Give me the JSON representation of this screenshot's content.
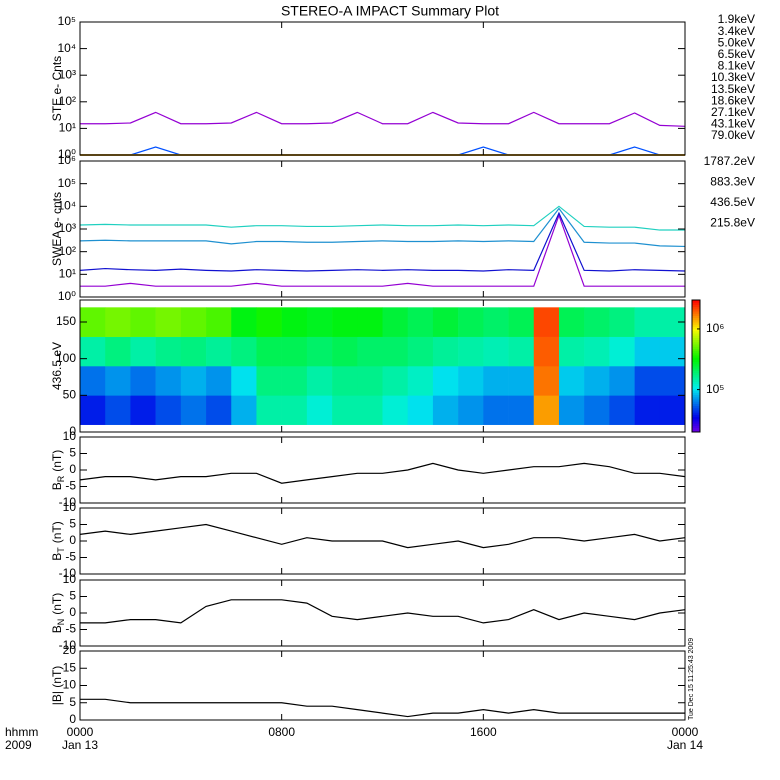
{
  "figure": {
    "title": "STEREO-A IMPACT Summary Plot",
    "xlim": [
      0,
      24
    ],
    "xticks": [
      {
        "value": 0,
        "label": "0000"
      },
      {
        "value": 8,
        "label": "0800"
      },
      {
        "value": 16,
        "label": "1600"
      },
      {
        "value": 24,
        "label": "0000"
      }
    ],
    "date_labels": [
      {
        "value": 0,
        "label": "Jan 13"
      },
      {
        "value": 24,
        "label": "Jan 14"
      }
    ],
    "x_label_time": "hhmm",
    "x_label_year": "2009",
    "timestamp": "Tue Dec 15 11:25:43 2009"
  },
  "chart_data": [
    {
      "type": "line",
      "ylabel": "STE e- Cnts",
      "log": true,
      "legend": "right",
      "ylim": [
        1,
        100000
      ],
      "yticks": [
        {
          "value": 1,
          "label": "10⁰"
        },
        {
          "value": 10,
          "label": "10¹"
        },
        {
          "value": 100,
          "label": "10²"
        },
        {
          "value": 1000,
          "label": "10³"
        },
        {
          "value": 10000,
          "label": "10⁴"
        },
        {
          "value": 100000,
          "label": "10⁵"
        }
      ],
      "x": [
        0,
        1,
        2,
        3,
        4,
        5,
        6,
        7,
        8,
        9,
        10,
        11,
        12,
        13,
        14,
        15,
        16,
        17,
        18,
        19,
        20,
        21,
        22,
        23,
        24
      ],
      "series": [
        {
          "name": "1.9keV",
          "color": "#9400d3",
          "values": [
            15,
            15,
            16,
            40,
            15,
            15,
            16,
            40,
            15,
            15,
            16,
            40,
            15,
            15,
            40,
            16,
            15,
            15,
            40,
            15,
            15,
            15,
            38,
            13,
            12
          ]
        },
        {
          "name": "3.4keV",
          "color": "#4b00c8",
          "values": [
            1,
            1,
            1,
            1,
            1,
            1,
            1,
            1,
            1,
            1,
            1,
            1,
            1,
            1,
            1,
            1,
            1,
            1,
            1,
            1,
            1,
            1,
            1,
            1,
            1
          ]
        },
        {
          "name": "5.0keV",
          "color": "#0050ff",
          "values": [
            1,
            1,
            1,
            2,
            1,
            1,
            1,
            1,
            1,
            1,
            1,
            1,
            1,
            1,
            1,
            1,
            2,
            1,
            1,
            1,
            1,
            1,
            2,
            1,
            1
          ]
        },
        {
          "name": "6.5keV",
          "color": "#00a0e0",
          "values": [
            1,
            1,
            1,
            1,
            1,
            1,
            1,
            1,
            1,
            1,
            1,
            1,
            1,
            1,
            1,
            1,
            1,
            1,
            1,
            1,
            1,
            1,
            1,
            1,
            1
          ]
        },
        {
          "name": "8.1keV",
          "color": "#00d0c0",
          "values": [
            1,
            1,
            1,
            1,
            1,
            1,
            1,
            1,
            1,
            1,
            1,
            1,
            1,
            1,
            1,
            1,
            1,
            1,
            1,
            1,
            1,
            1,
            1,
            1,
            1
          ]
        },
        {
          "name": "10.3keV",
          "color": "#00e060",
          "values": [
            1,
            1,
            1,
            1,
            1,
            1,
            1,
            1,
            1,
            1,
            1,
            1,
            1,
            1,
            1,
            1,
            1,
            1,
            1,
            1,
            1,
            1,
            1,
            1,
            1
          ]
        },
        {
          "name": "13.5keV",
          "color": "#40e000",
          "values": [
            1,
            1,
            1,
            1,
            1,
            1,
            1,
            1,
            1,
            1,
            1,
            1,
            1,
            1,
            1,
            1,
            1,
            1,
            1,
            1,
            1,
            1,
            1,
            1,
            1
          ]
        },
        {
          "name": "18.6keV",
          "color": "#c0e000",
          "values": [
            1,
            1,
            1,
            1,
            1,
            1,
            1,
            1,
            1,
            1,
            1,
            1,
            1,
            1,
            1,
            1,
            1,
            1,
            1,
            1,
            1,
            1,
            1,
            1,
            1
          ]
        },
        {
          "name": "27.1keV",
          "color": "#f0d000",
          "values": [
            1,
            1,
            1,
            1,
            1,
            1,
            1,
            1,
            1,
            1,
            1,
            1,
            1,
            1,
            1,
            1,
            1,
            1,
            1,
            1,
            1,
            1,
            1,
            1,
            1
          ]
        },
        {
          "name": "43.1keV",
          "color": "#ff8000",
          "values": [
            1,
            1,
            1,
            1,
            1,
            1,
            1,
            1,
            1,
            1,
            1,
            1,
            1,
            1,
            1,
            1,
            1,
            1,
            1,
            1,
            1,
            1,
            1,
            1,
            1
          ]
        },
        {
          "name": "79.0keV",
          "color": "#e00000",
          "values": [
            1,
            1,
            1,
            1,
            1,
            1,
            1,
            1,
            1,
            1,
            1,
            1,
            1,
            1,
            1,
            1,
            1,
            1,
            1,
            1,
            1,
            1,
            1,
            1,
            1
          ]
        }
      ]
    },
    {
      "type": "line",
      "ylabel": "SWEA e- cnts",
      "log": true,
      "legend": "right",
      "ylim": [
        1,
        1000000
      ],
      "yticks": [
        {
          "value": 1,
          "label": "10⁰"
        },
        {
          "value": 10,
          "label": "10¹"
        },
        {
          "value": 100,
          "label": "10²"
        },
        {
          "value": 1000,
          "label": "10³"
        },
        {
          "value": 10000,
          "label": "10⁴"
        },
        {
          "value": 100000,
          "label": "10⁵"
        },
        {
          "value": 1000000,
          "label": "10⁶"
        }
      ],
      "x": [
        0,
        1,
        2,
        3,
        4,
        5,
        6,
        7,
        8,
        9,
        10,
        11,
        12,
        13,
        14,
        15,
        16,
        17,
        18,
        19,
        20,
        21,
        22,
        23,
        24
      ],
      "series": [
        {
          "name": "1787.2eV",
          "color": "#9400d3",
          "values": [
            3,
            3,
            4,
            3,
            3,
            3,
            3,
            4,
            3,
            3,
            3,
            3,
            3,
            4,
            3,
            3,
            3,
            3,
            3,
            4000,
            3,
            3,
            3,
            3,
            3
          ]
        },
        {
          "name": "883.3eV",
          "color": "#1010d0",
          "values": [
            15,
            18,
            16,
            15,
            17,
            15,
            14,
            16,
            15,
            14,
            15,
            16,
            15,
            16,
            15,
            15,
            14,
            16,
            15,
            5000,
            15,
            14,
            16,
            15,
            14
          ]
        },
        {
          "name": "436.5eV",
          "color": "#1e90d0",
          "values": [
            300,
            320,
            300,
            300,
            300,
            300,
            220,
            280,
            280,
            260,
            260,
            280,
            300,
            280,
            280,
            300,
            280,
            300,
            280,
            8000,
            260,
            240,
            240,
            180,
            170
          ]
        },
        {
          "name": "215.8eV",
          "color": "#20d0c0",
          "values": [
            1500,
            1600,
            1500,
            1500,
            1500,
            1500,
            1200,
            1400,
            1400,
            1300,
            1300,
            1400,
            1500,
            1400,
            1400,
            1500,
            1400,
            1500,
            1400,
            10000,
            1300,
            1200,
            1200,
            900,
            900
          ]
        }
      ]
    },
    {
      "type": "heatmap",
      "ylabel": "436.5 eV",
      "colormap": "rainbow",
      "ylim": [
        0,
        180
      ],
      "yticks": [
        0,
        50,
        100,
        150
      ],
      "x_edges": [
        0,
        1,
        2,
        3,
        4,
        5,
        6,
        7,
        8,
        9,
        10,
        11,
        12,
        13,
        14,
        15,
        16,
        17,
        18,
        19,
        20,
        21,
        22,
        23,
        24
      ],
      "y_edges": [
        10,
        50,
        90,
        130,
        170
      ],
      "zlim": [
        20000,
        3000000
      ],
      "zticks": [
        {
          "value": 100000,
          "label": "10⁵"
        },
        {
          "value": 1000000,
          "label": "10⁶"
        }
      ],
      "z": [
        [
          40000,
          50000,
          40000,
          50000,
          60000,
          50000,
          80000,
          150000,
          150000,
          120000,
          150000,
          150000,
          120000,
          100000,
          80000,
          70000,
          60000,
          60000,
          1500000,
          70000,
          60000,
          50000,
          40000,
          40000
        ],
        [
          60000,
          70000,
          60000,
          70000,
          80000,
          70000,
          100000,
          180000,
          180000,
          150000,
          170000,
          170000,
          150000,
          130000,
          100000,
          90000,
          80000,
          80000,
          1800000,
          90000,
          80000,
          70000,
          50000,
          50000
        ],
        [
          150000,
          180000,
          150000,
          170000,
          180000,
          160000,
          180000,
          220000,
          220000,
          200000,
          220000,
          200000,
          200000,
          180000,
          160000,
          150000,
          140000,
          150000,
          2000000,
          150000,
          140000,
          120000,
          90000,
          90000
        ],
        [
          500000,
          550000,
          500000,
          550000,
          500000,
          450000,
          300000,
          350000,
          300000,
          280000,
          300000,
          300000,
          250000,
          220000,
          250000,
          220000,
          200000,
          220000,
          2200000,
          220000,
          200000,
          180000,
          150000,
          150000
        ]
      ]
    },
    {
      "type": "line",
      "ylabel": "B",
      "ylabel_sub": "R",
      "ylabel_unit": "(nT)",
      "log": false,
      "ylim": [
        -10,
        10
      ],
      "yticks": [
        -10,
        -5,
        0,
        5,
        10
      ],
      "x": [
        0,
        1,
        2,
        3,
        4,
        5,
        6,
        7,
        8,
        9,
        10,
        11,
        12,
        13,
        14,
        15,
        16,
        17,
        18,
        19,
        20,
        21,
        22,
        23,
        24
      ],
      "series": [
        {
          "color": "#000000",
          "values": [
            -3,
            -2,
            -2,
            -3,
            -2,
            -2,
            -1,
            -1,
            -4,
            -3,
            -2,
            -1,
            -1,
            0,
            2,
            0,
            -1,
            0,
            1,
            1,
            2,
            1,
            -1,
            -1,
            -2
          ]
        }
      ]
    },
    {
      "type": "line",
      "ylabel": "B",
      "ylabel_sub": "T",
      "ylabel_unit": "(nT)",
      "log": false,
      "ylim": [
        -10,
        10
      ],
      "yticks": [
        -10,
        -5,
        0,
        5,
        10
      ],
      "x": [
        0,
        1,
        2,
        3,
        4,
        5,
        6,
        7,
        8,
        9,
        10,
        11,
        12,
        13,
        14,
        15,
        16,
        17,
        18,
        19,
        20,
        21,
        22,
        23,
        24
      ],
      "series": [
        {
          "color": "#000000",
          "values": [
            2,
            3,
            2,
            3,
            4,
            5,
            3,
            1,
            -1,
            1,
            0,
            0,
            0,
            -2,
            -1,
            0,
            -2,
            -1,
            1,
            1,
            0,
            1,
            2,
            0,
            1
          ]
        }
      ]
    },
    {
      "type": "line",
      "ylabel": "B",
      "ylabel_sub": "N",
      "ylabel_unit": "(nT)",
      "log": false,
      "ylim": [
        -10,
        10
      ],
      "yticks": [
        -10,
        -5,
        0,
        5,
        10
      ],
      "x": [
        0,
        1,
        2,
        3,
        4,
        5,
        6,
        7,
        8,
        9,
        10,
        11,
        12,
        13,
        14,
        15,
        16,
        17,
        18,
        19,
        20,
        21,
        22,
        23,
        24
      ],
      "series": [
        {
          "color": "#000000",
          "values": [
            -3,
            -3,
            -2,
            -2,
            -3,
            2,
            4,
            4,
            4,
            3,
            -1,
            -2,
            -1,
            0,
            -1,
            -1,
            -3,
            -2,
            1,
            -2,
            0,
            -1,
            -2,
            0,
            1
          ]
        }
      ]
    },
    {
      "type": "line",
      "ylabel": "|B| (nT)",
      "log": false,
      "ylim": [
        0,
        20
      ],
      "yticks": [
        0,
        5,
        10,
        15,
        20
      ],
      "x": [
        0,
        1,
        2,
        3,
        4,
        5,
        6,
        7,
        8,
        9,
        10,
        11,
        12,
        13,
        14,
        15,
        16,
        17,
        18,
        19,
        20,
        21,
        22,
        23,
        24
      ],
      "series": [
        {
          "color": "#000000",
          "values": [
            6,
            6,
            5,
            5,
            5,
            5,
            5,
            5,
            5,
            4,
            4,
            3,
            2,
            1,
            2,
            2,
            3,
            2,
            3,
            2,
            2,
            2,
            2,
            2,
            2
          ]
        }
      ]
    }
  ]
}
